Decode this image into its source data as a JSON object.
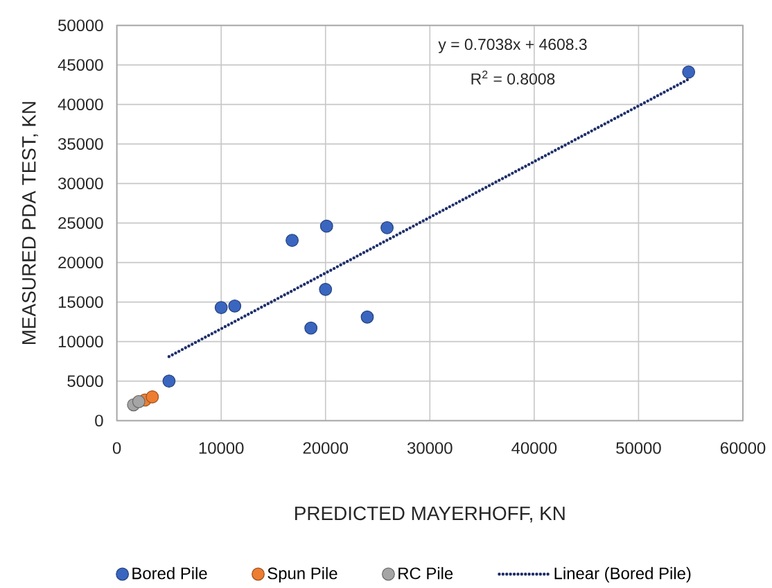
{
  "chart_data": {
    "type": "scatter",
    "xlabel": "PREDICTED MAYERHOFF, KN",
    "ylabel": "MEASURED PDA TEST, KN",
    "xlim": [
      0,
      60000
    ],
    "ylim": [
      0,
      50000
    ],
    "xticks": [
      0,
      10000,
      20000,
      30000,
      40000,
      50000,
      60000
    ],
    "yticks": [
      0,
      5000,
      10000,
      15000,
      20000,
      25000,
      30000,
      35000,
      40000,
      45000,
      50000
    ],
    "grid": true,
    "legend": "bottom",
    "marker": "circle",
    "series": [
      {
        "name": "Bored Pile",
        "color": "#3a66c0",
        "x": [
          5000,
          10000,
          11300,
          16800,
          20100,
          20000,
          18600,
          24000,
          25900,
          54800
        ],
        "values": [
          5000,
          14300,
          14500,
          22800,
          24600,
          16600,
          11700,
          13100,
          24400,
          44100
        ]
      },
      {
        "name": "Spun Pile",
        "color": "#ed7d31",
        "x": [
          2700,
          3400
        ],
        "values": [
          2600,
          3000
        ]
      },
      {
        "name": "RC Pile",
        "color": "#a5a5a5",
        "x": [
          1600,
          2100
        ],
        "values": [
          2000,
          2400
        ]
      },
      {
        "name": "Linear (Bored Pile)",
        "type": "line",
        "color": "#1f2f6b",
        "line_style": "dotted",
        "marker": "none",
        "x": [
          5000,
          54800
        ],
        "values": [
          8100,
          43200
        ]
      }
    ],
    "annotations": [
      "y = 0.7038x + 4608.3",
      "R$^{2}$ = 0.8008"
    ]
  }
}
